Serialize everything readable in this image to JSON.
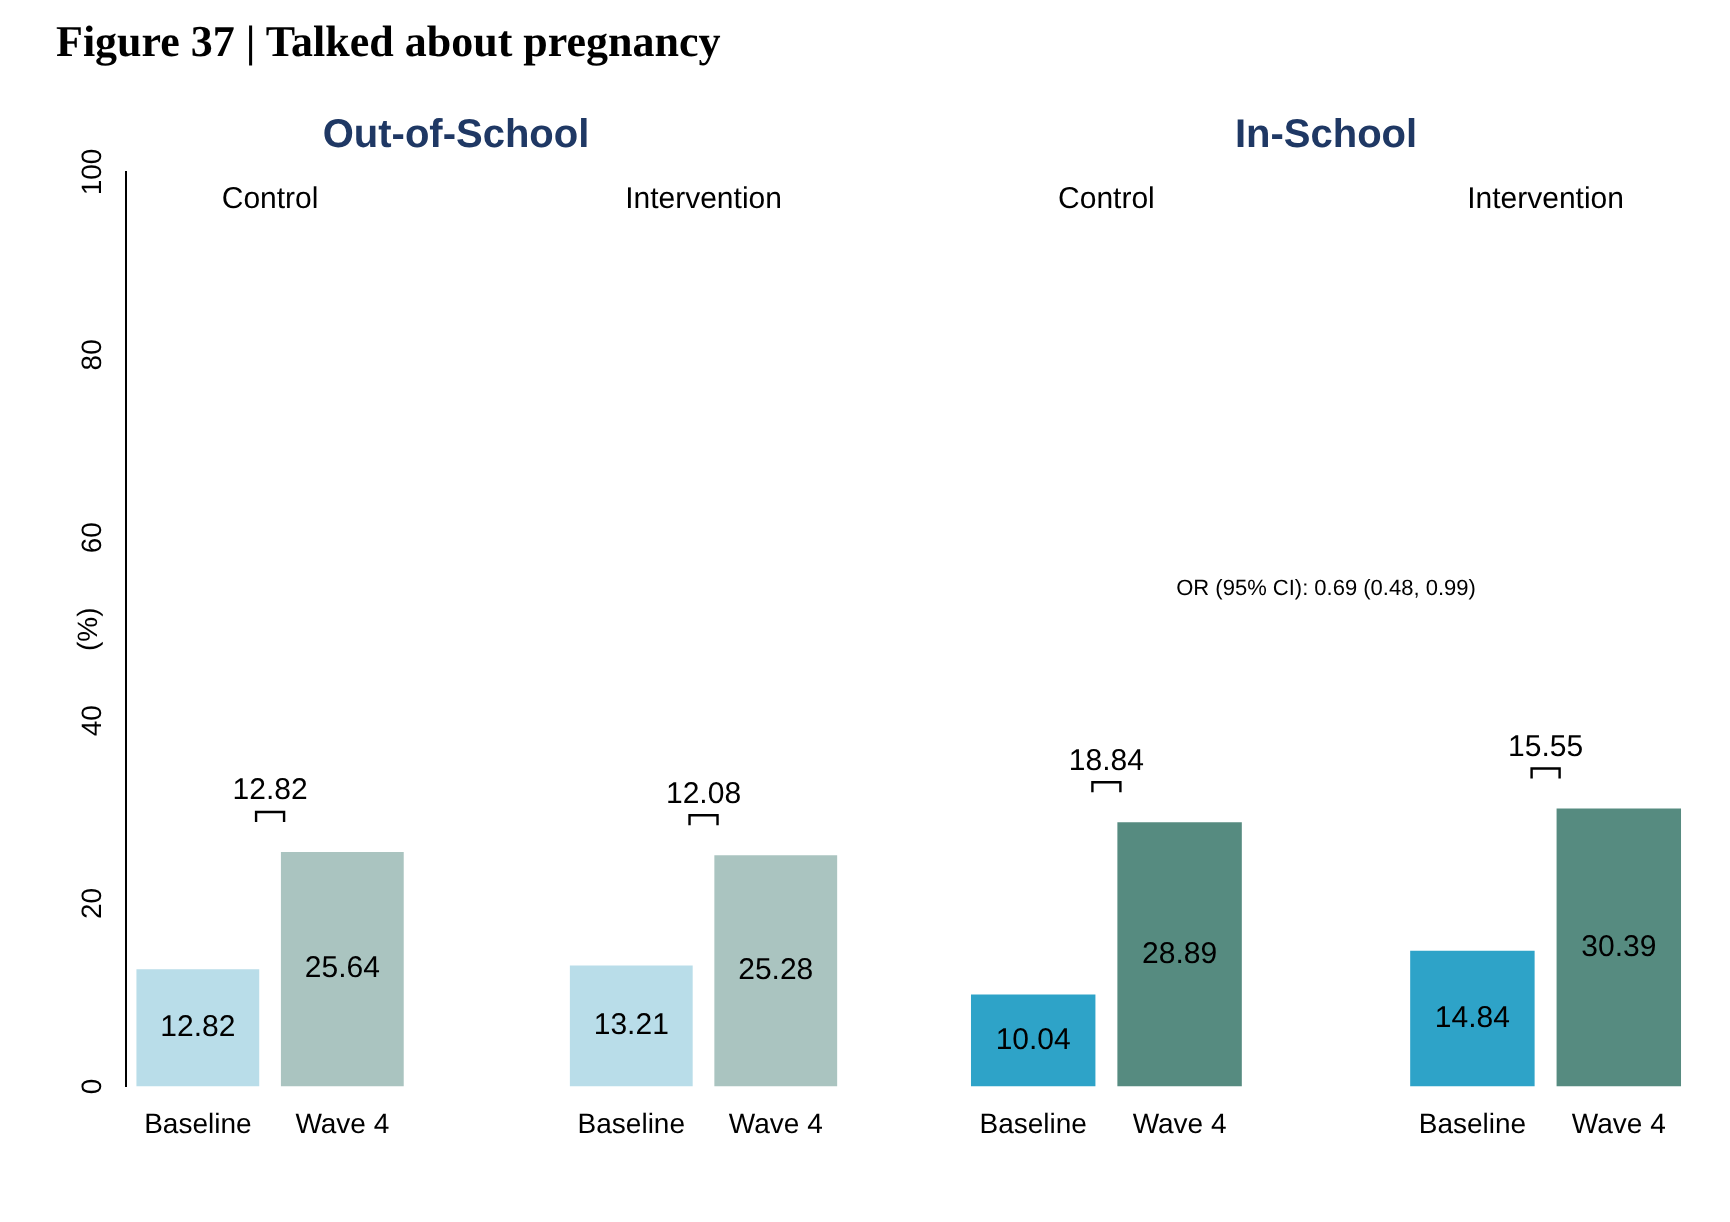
{
  "chart_data": [
    {
      "type": "bar",
      "title": "Figure 37 | Talked about pregnancy",
      "subtitle": "Out-of-School",
      "ylabel": "(%)",
      "categories": [
        "Baseline",
        "Wave 4",
        null,
        "Baseline",
        "Wave 4"
      ],
      "series": [
        {
          "colors": [
            "#b9dde9",
            "#aac4c0",
            null,
            null,
            null
          ],
          "values": [
            12.82,
            25.64,
            null,
            null,
            null
          ]
        },
        {
          "colors": [
            null,
            null,
            null,
            "#b9dde9",
            "#aac4c0"
          ],
          "values": [
            null,
            null,
            null,
            13.21,
            25.28
          ]
        }
      ],
      "ylim": [
        0,
        100
      ],
      "yticks": [
        0,
        20,
        40,
        60,
        80,
        100
      ],
      "data_labels": true,
      "legend": false,
      "annotations": [
        "Control",
        "Intervention",
        "12.82",
        "12.08"
      ]
    },
    {
      "type": "bar",
      "subtitle": "In-School",
      "categories": [
        "Baseline",
        "Wave 4",
        null,
        "Baseline",
        "Wave 4"
      ],
      "series": [
        {
          "colors": [
            "#2ea3c8",
            "#568b80",
            null,
            null,
            null
          ],
          "values": [
            10.04,
            28.89,
            null,
            null,
            null
          ]
        },
        {
          "colors": [
            null,
            null,
            null,
            "#2ea3c8",
            "#568b80"
          ],
          "values": [
            null,
            null,
            null,
            14.84,
            30.39
          ]
        }
      ],
      "ylim": [
        0,
        100
      ],
      "yticks": [
        0,
        20,
        40,
        60,
        80,
        100
      ],
      "tick_labels": "x",
      "data_labels": true,
      "legend": false,
      "annotations": [
        "Control",
        "Intervention",
        "18.84",
        "15.55",
        "OR (95% CI): 0.69 (0.48, 0.99)"
      ]
    }
  ]
}
